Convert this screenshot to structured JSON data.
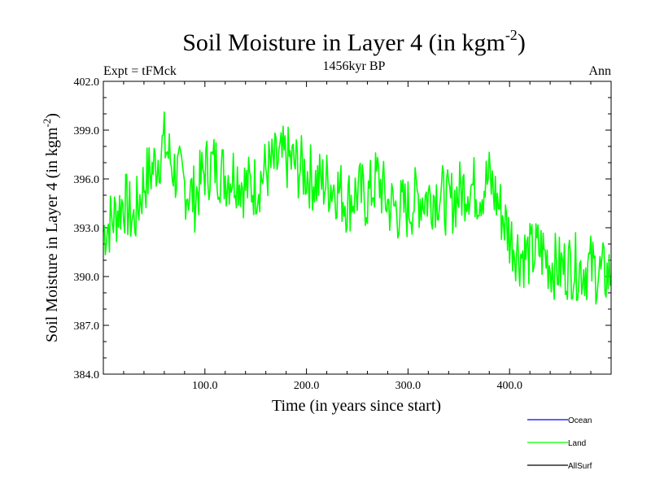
{
  "chart_data": {
    "type": "line",
    "title": "Soil Moisture in Layer 4 (in kgm",
    "title_sup": "-2",
    "title_close": ")",
    "subtitle_left": "Expt = tFMck",
    "subtitle_center": "1456kyr BP",
    "subtitle_right": "Ann",
    "xlabel": "Time (in years since start)",
    "ylabel": "Soil Moisture in Layer 4 (in kgm",
    "ylabel_sup": "-2",
    "ylabel_close": ")",
    "xlim": [
      0,
      500
    ],
    "ylim": [
      384,
      402
    ],
    "xticks": [
      100,
      200,
      300,
      400
    ],
    "xtick_labels": [
      "100.0",
      "200.0",
      "300.0",
      "400.0"
    ],
    "yticks": [
      384,
      387,
      390,
      393,
      396,
      399,
      402
    ],
    "ytick_labels": [
      "384.0",
      "387.0",
      "390.0",
      "393.0",
      "396.0",
      "399.0",
      "402.0"
    ],
    "legend": [
      {
        "name": "Ocean",
        "color": "#0000ff"
      },
      {
        "name": "Land",
        "color": "#00ff00"
      },
      {
        "name": "AllSurf",
        "color": "#000000"
      }
    ],
    "series": [
      {
        "name": "Land",
        "color": "#00ff00",
        "x_start": 0,
        "x_step": 10,
        "values": [
          392.8,
          393.6,
          394.7,
          393.4,
          395.8,
          396.8,
          398.2,
          396.5,
          395.6,
          394.8,
          396.6,
          396.9,
          396.2,
          396.4,
          395.5,
          395.6,
          396.5,
          396.9,
          397.3,
          396.8,
          396.4,
          395.8,
          395.8,
          395.5,
          394.6,
          395.2,
          394.8,
          396.1,
          394.5,
          394.1,
          394.2,
          394.9,
          394.9,
          395.2,
          394.4,
          395.1,
          395.7,
          395.2,
          396.0,
          394.3,
          392.5,
          391.4,
          391.3,
          391.7,
          390.8,
          390.5,
          390.7,
          390.5,
          390.6,
          390.1
        ]
      }
    ]
  }
}
